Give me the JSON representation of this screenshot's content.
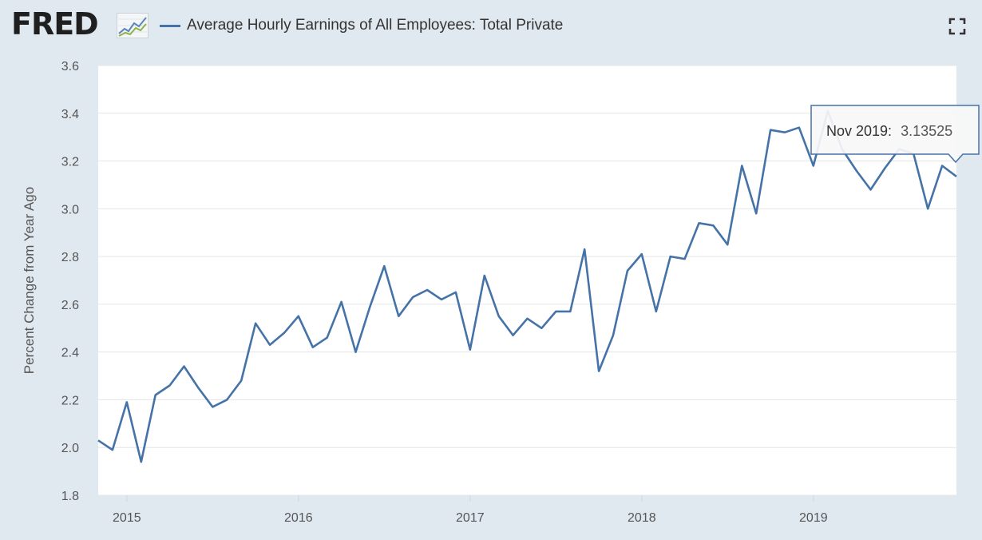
{
  "header": {
    "logo_text": "FRED",
    "legend_label": "Average Hourly Earnings of All Employees: Total Private",
    "fullscreen_icon": "fullscreen-icon",
    "logo_icon": "line-graph-icon"
  },
  "tooltip": {
    "date_label": "Nov 2019:",
    "value_label": "3.13525"
  },
  "colors": {
    "series": "#4572a7",
    "page_background": "#e1e9f0",
    "plot_background": "#ffffff",
    "grid": "#e6e6e6"
  },
  "chart_data": {
    "type": "line",
    "ylabel": "Percent Change from Year Ago",
    "ylim": [
      1.8,
      3.6
    ],
    "y_ticks": [
      "1.8",
      "2.0",
      "2.2",
      "2.4",
      "2.6",
      "2.8",
      "3.0",
      "3.2",
      "3.4",
      "3.6"
    ],
    "x_ticks": [
      "2015",
      "2016",
      "2017",
      "2018",
      "2019"
    ],
    "grid": true,
    "series": [
      {
        "name": "Average Hourly Earnings of All Employees: Total Private",
        "x": [
          "2014-11",
          "2014-12",
          "2015-01",
          "2015-02",
          "2015-03",
          "2015-04",
          "2015-05",
          "2015-06",
          "2015-07",
          "2015-08",
          "2015-09",
          "2015-10",
          "2015-11",
          "2015-12",
          "2016-01",
          "2016-02",
          "2016-03",
          "2016-04",
          "2016-05",
          "2016-06",
          "2016-07",
          "2016-08",
          "2016-09",
          "2016-10",
          "2016-11",
          "2016-12",
          "2017-01",
          "2017-02",
          "2017-03",
          "2017-04",
          "2017-05",
          "2017-06",
          "2017-07",
          "2017-08",
          "2017-09",
          "2017-10",
          "2017-11",
          "2017-12",
          "2018-01",
          "2018-02",
          "2018-03",
          "2018-04",
          "2018-05",
          "2018-06",
          "2018-07",
          "2018-08",
          "2018-09",
          "2018-10",
          "2018-11",
          "2018-12",
          "2019-01",
          "2019-02",
          "2019-03",
          "2019-04",
          "2019-05",
          "2019-06",
          "2019-07",
          "2019-08",
          "2019-09",
          "2019-10",
          "2019-11"
        ],
        "values": [
          2.03,
          1.99,
          2.19,
          1.94,
          2.22,
          2.26,
          2.34,
          2.25,
          2.17,
          2.2,
          2.28,
          2.52,
          2.43,
          2.48,
          2.55,
          2.42,
          2.46,
          2.61,
          2.4,
          2.59,
          2.76,
          2.55,
          2.63,
          2.66,
          2.62,
          2.65,
          2.41,
          2.72,
          2.55,
          2.47,
          2.54,
          2.5,
          2.57,
          2.57,
          2.83,
          2.32,
          2.47,
          2.74,
          2.81,
          2.57,
          2.8,
          2.79,
          2.94,
          2.93,
          2.85,
          3.18,
          2.98,
          3.33,
          3.32,
          3.34,
          3.18,
          3.41,
          3.25,
          3.16,
          3.08,
          3.17,
          3.25,
          3.23,
          3.0,
          3.18,
          3.13525
        ]
      }
    ]
  }
}
